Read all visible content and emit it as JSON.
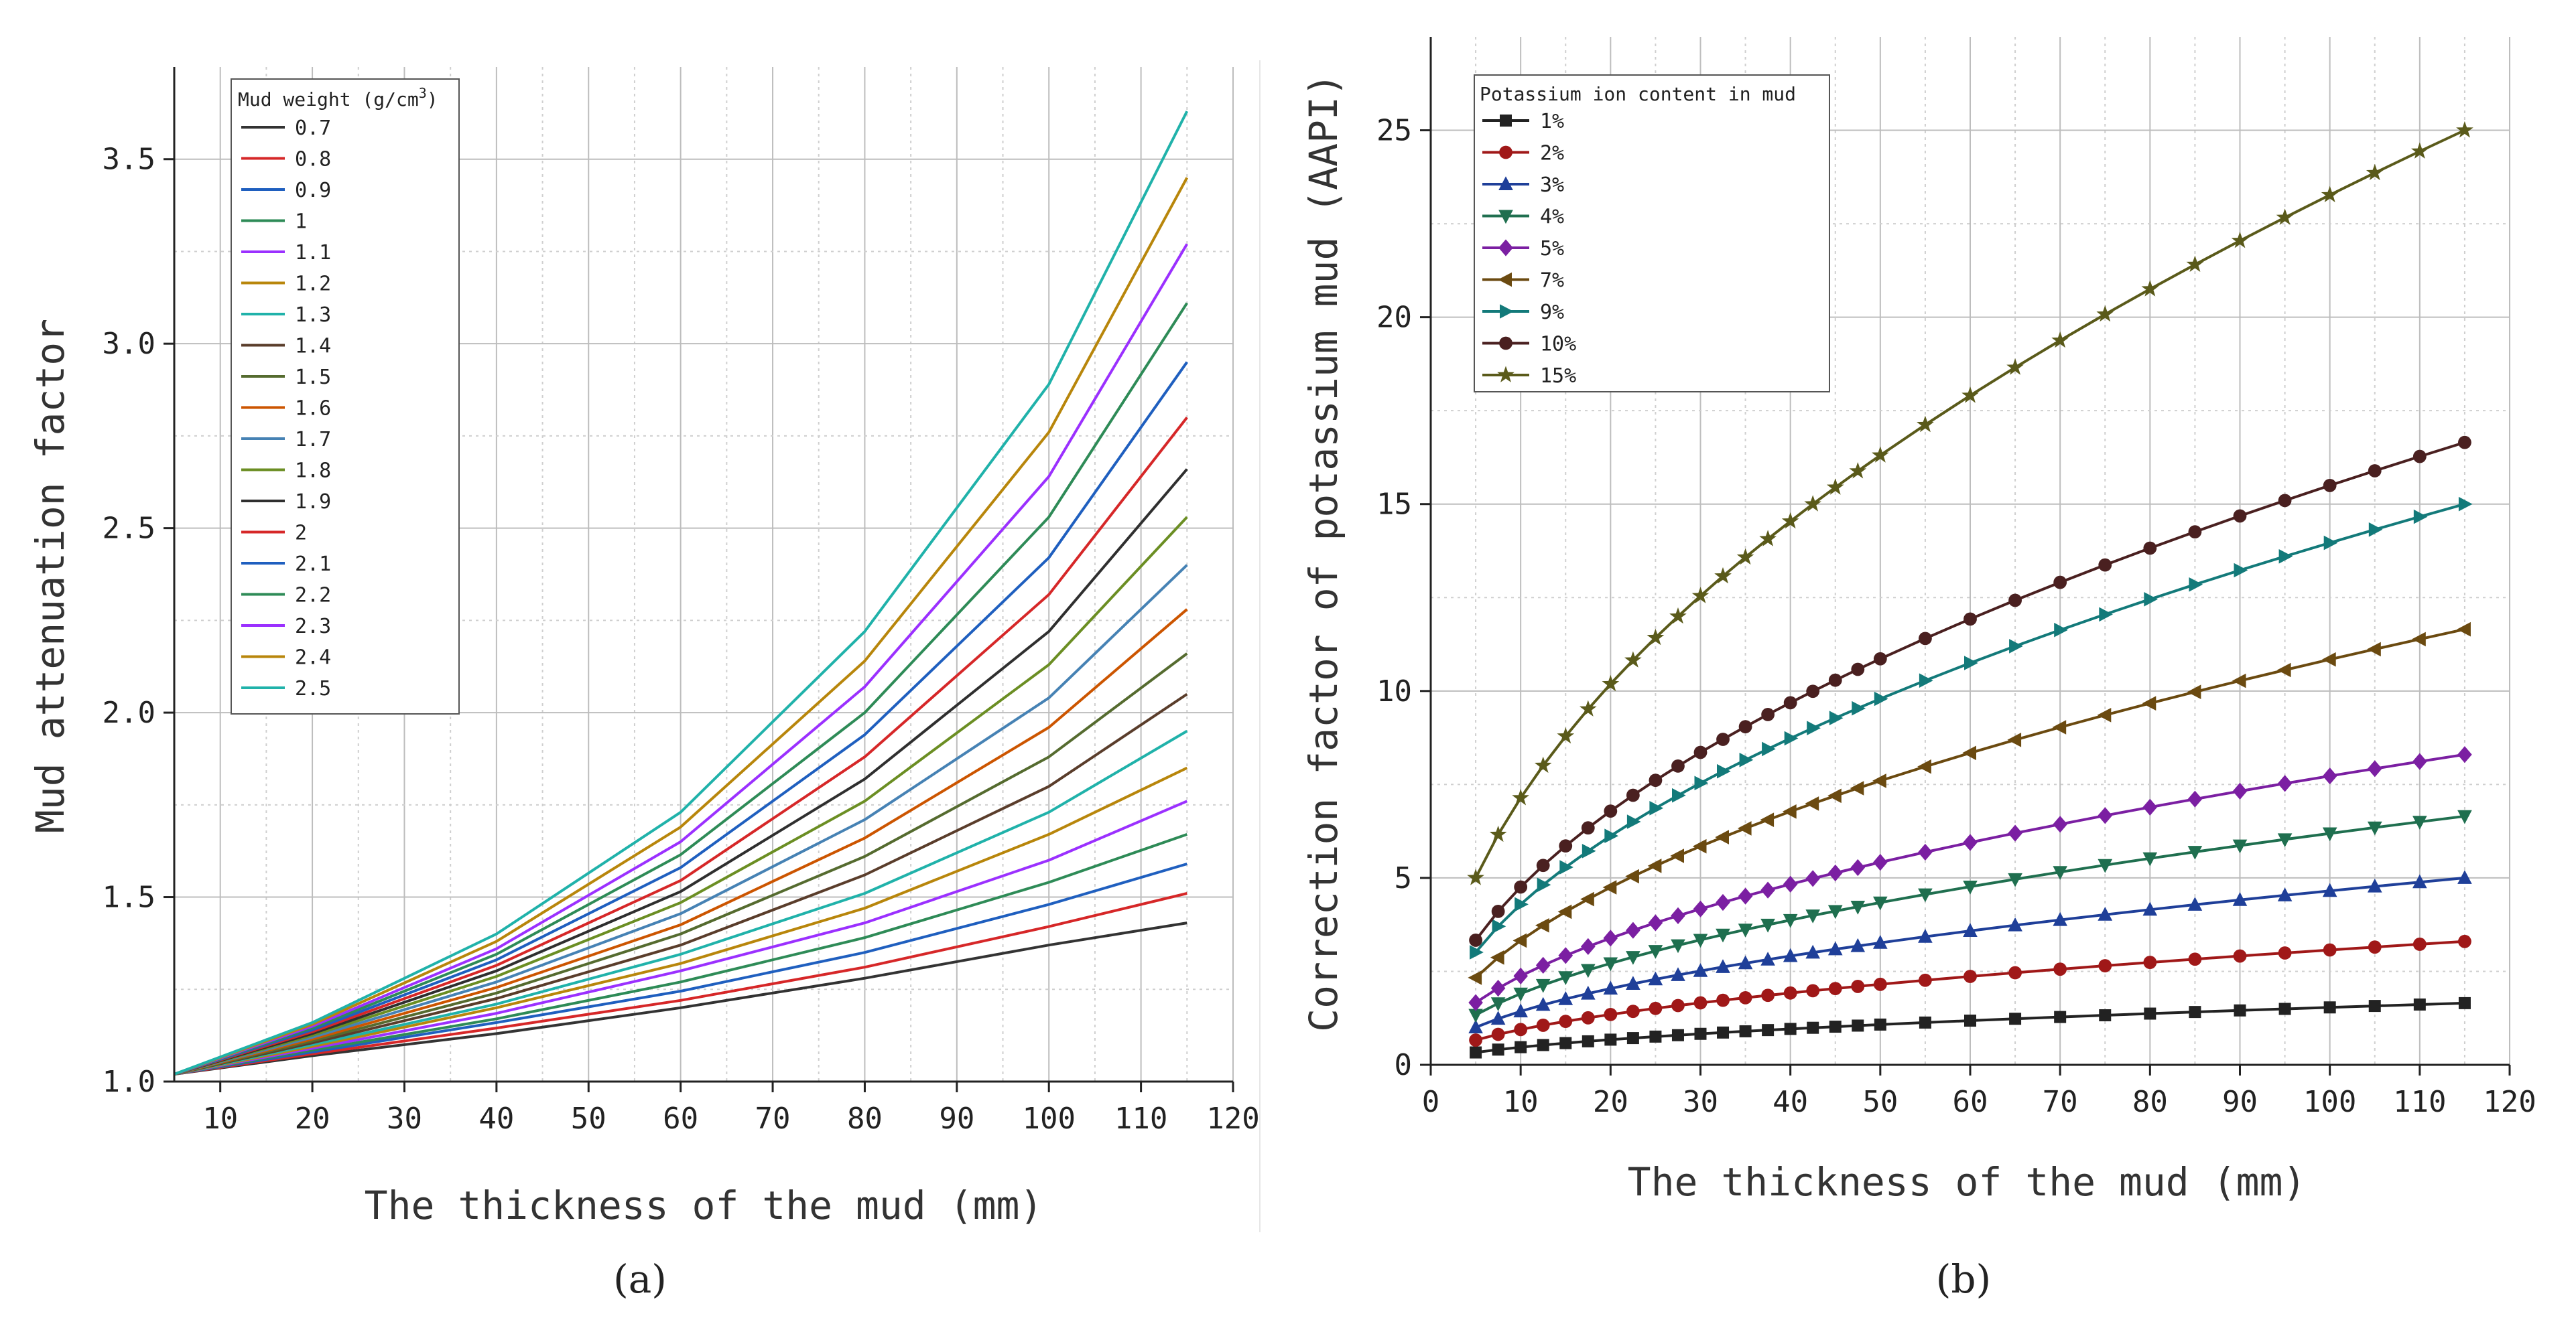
{
  "chart_data": [
    {
      "type": "line",
      "panel_label": "(a)",
      "title": "",
      "xlabel": "The thickness of the mud (mm)",
      "ylabel": "Mud attenuation factor",
      "xlim": [
        5,
        120
      ],
      "ylim": [
        1.0,
        3.75
      ],
      "xticks": [
        10,
        20,
        30,
        40,
        50,
        60,
        70,
        80,
        90,
        100,
        110,
        120
      ],
      "yticks": [
        1.0,
        1.5,
        2.0,
        2.5,
        3.0,
        3.5
      ],
      "ytick_labels": [
        "1.0",
        "1.5",
        "2.0",
        "2.5",
        "3.0",
        "3.5"
      ],
      "grid": true,
      "legend_title": "Mud weight (g/cm",
      "legend_title_sup": "3",
      "legend_title_end": ")",
      "legend_position": "top-left",
      "x": [
        5,
        20,
        40,
        60,
        80,
        100,
        115
      ],
      "series": [
        {
          "name": "0.7",
          "color": "#333333",
          "values": [
            1.02,
            1.07,
            1.13,
            1.2,
            1.28,
            1.37,
            1.43
          ]
        },
        {
          "name": "0.8",
          "color": "#d62728",
          "values": [
            1.02,
            1.075,
            1.145,
            1.22,
            1.31,
            1.42,
            1.51
          ]
        },
        {
          "name": "0.9",
          "color": "#1f5fbf",
          "values": [
            1.02,
            1.08,
            1.16,
            1.245,
            1.35,
            1.48,
            1.59
          ]
        },
        {
          "name": "1",
          "color": "#2e8b57",
          "values": [
            1.02,
            1.085,
            1.17,
            1.27,
            1.39,
            1.54,
            1.67
          ]
        },
        {
          "name": "1.1",
          "color": "#9b30ff",
          "values": [
            1.02,
            1.09,
            1.185,
            1.3,
            1.43,
            1.6,
            1.76
          ]
        },
        {
          "name": "1.2",
          "color": "#b8860b",
          "values": [
            1.02,
            1.095,
            1.2,
            1.32,
            1.47,
            1.67,
            1.85
          ]
        },
        {
          "name": "1.3",
          "color": "#20b2aa",
          "values": [
            1.02,
            1.1,
            1.21,
            1.345,
            1.51,
            1.73,
            1.95
          ]
        },
        {
          "name": "1.4",
          "color": "#5a3d2b",
          "values": [
            1.02,
            1.105,
            1.225,
            1.37,
            1.56,
            1.8,
            2.05
          ]
        },
        {
          "name": "1.5",
          "color": "#556b2f",
          "values": [
            1.02,
            1.11,
            1.24,
            1.4,
            1.61,
            1.88,
            2.16
          ]
        },
        {
          "name": "1.6",
          "color": "#cc5500",
          "values": [
            1.02,
            1.115,
            1.255,
            1.425,
            1.66,
            1.96,
            2.28
          ]
        },
        {
          "name": "1.7",
          "color": "#4682b4",
          "values": [
            1.02,
            1.12,
            1.27,
            1.455,
            1.71,
            2.04,
            2.4
          ]
        },
        {
          "name": "1.8",
          "color": "#6b8e23",
          "values": [
            1.02,
            1.125,
            1.285,
            1.485,
            1.76,
            2.13,
            2.53
          ]
        },
        {
          "name": "1.9",
          "color": "#2f2f2f",
          "values": [
            1.02,
            1.13,
            1.3,
            1.515,
            1.82,
            2.22,
            2.66
          ]
        },
        {
          "name": "2",
          "color": "#d62728",
          "values": [
            1.02,
            1.135,
            1.315,
            1.545,
            1.88,
            2.32,
            2.8
          ]
        },
        {
          "name": "2.1",
          "color": "#1f5fbf",
          "values": [
            1.02,
            1.14,
            1.33,
            1.58,
            1.94,
            2.42,
            2.95
          ]
        },
        {
          "name": "2.2",
          "color": "#2e8b57",
          "values": [
            1.02,
            1.145,
            1.345,
            1.615,
            2.0,
            2.53,
            3.11
          ]
        },
        {
          "name": "2.3",
          "color": "#9b30ff",
          "values": [
            1.02,
            1.15,
            1.36,
            1.65,
            2.07,
            2.64,
            3.27
          ]
        },
        {
          "name": "2.4",
          "color": "#b8860b",
          "values": [
            1.02,
            1.155,
            1.38,
            1.69,
            2.14,
            2.76,
            3.45
          ]
        },
        {
          "name": "2.5",
          "color": "#20b2aa",
          "values": [
            1.02,
            1.16,
            1.4,
            1.73,
            2.22,
            2.89,
            3.63
          ]
        }
      ]
    },
    {
      "type": "line",
      "panel_label": "(b)",
      "title": "",
      "xlabel": "The thickness of the mud (mm)",
      "ylabel": "Correction factor of potassium mud (AAPI)",
      "xlim": [
        0,
        120
      ],
      "ylim": [
        0,
        27.5
      ],
      "xticks": [
        0,
        10,
        20,
        30,
        40,
        50,
        60,
        70,
        80,
        90,
        100,
        110,
        120
      ],
      "yticks": [
        0,
        5,
        10,
        15,
        20,
        25
      ],
      "grid": true,
      "legend_title": "Potassium ion content in mud",
      "legend_position": "top-left",
      "x": [
        5,
        7.5,
        10,
        12.5,
        15,
        17.5,
        20,
        22.5,
        25,
        27.5,
        30,
        32.5,
        35,
        37.5,
        40,
        42.5,
        45,
        47.5,
        50,
        55,
        60,
        65,
        70,
        75,
        80,
        85,
        90,
        95,
        100,
        105,
        110,
        115
      ],
      "series": [
        {
          "name": "1%",
          "color": "#222222",
          "marker": "square",
          "k": 0.145,
          "end": 1.65
        },
        {
          "name": "2%",
          "color": "#a01818",
          "marker": "circle",
          "k": 0.29,
          "end": 3.3
        },
        {
          "name": "3%",
          "color": "#1f3f99",
          "marker": "triangle-up",
          "k": 0.44,
          "end": 5.0
        },
        {
          "name": "4%",
          "color": "#1f6f4f",
          "marker": "triangle-down",
          "k": 0.585,
          "end": 6.65
        },
        {
          "name": "5%",
          "color": "#7b1fa2",
          "marker": "diamond",
          "k": 0.73,
          "end": 8.3
        },
        {
          "name": "7%",
          "color": "#6b4a10",
          "marker": "triangle-left",
          "k": 1.02,
          "end": 11.65
        },
        {
          "name": "9%",
          "color": "#137a7a",
          "marker": "triangle-right",
          "k": 1.32,
          "end": 15.0
        },
        {
          "name": "10%",
          "color": "#4a2020",
          "marker": "circle",
          "k": 1.46,
          "end": 16.65
        },
        {
          "name": "15%",
          "color": "#5a5a1a",
          "marker": "star",
          "k": 2.19,
          "end": 25.0
        }
      ]
    }
  ]
}
